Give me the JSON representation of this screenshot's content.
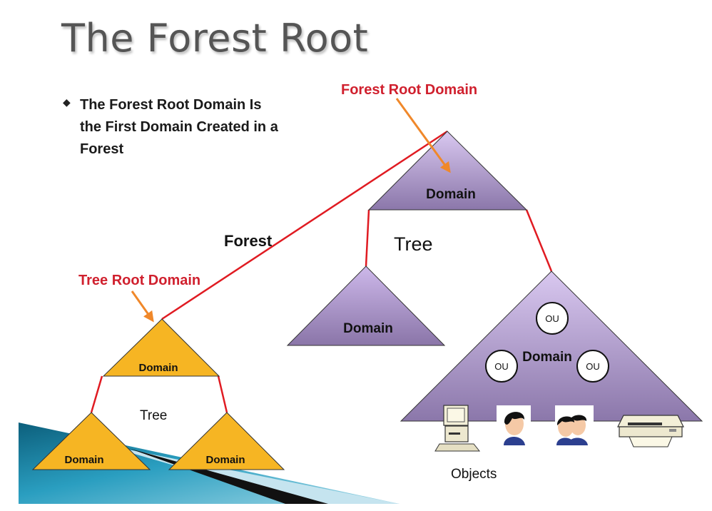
{
  "title": "The Forest Root",
  "bullet": {
    "marker": "◆",
    "text": "The Forest Root Domain Is the First Domain Created in a Forest"
  },
  "labels": {
    "forest_root_domain": "Forest Root Domain",
    "tree_root_domain": "Tree Root Domain",
    "forest": "Forest",
    "tree_purple": "Tree",
    "tree_yellow": "Tree",
    "objects": "Objects"
  },
  "domains": {
    "purple_top": "Domain",
    "purple_left": "Domain",
    "purple_big": "Domain",
    "yellow_top": "Domain",
    "yellow_left": "Domain",
    "yellow_right": "Domain"
  },
  "ous": [
    "OU",
    "OU",
    "OU"
  ],
  "icons": [
    "computer-icon",
    "user-icon",
    "group-icon",
    "printer-icon"
  ],
  "colors": {
    "purple_domain": "#9a85b8",
    "yellow_domain": "#f6b523",
    "link_red": "#e01b22",
    "arrow_orange": "#f0882a",
    "label_red": "#d0202e",
    "accent_teal": "#2a8fb0"
  }
}
